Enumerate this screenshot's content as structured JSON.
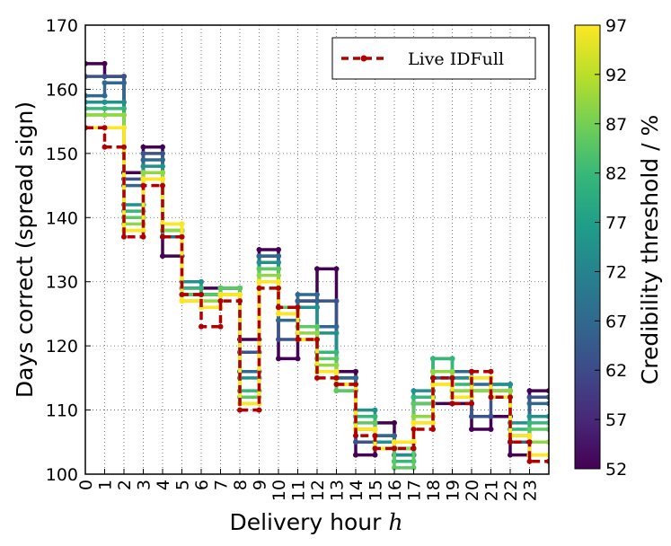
{
  "chart_data": {
    "type": "line",
    "subtype": "step",
    "xlabel": "Delivery hour",
    "xlabel_var": "h",
    "ylabel": "Days correct (spread sign)",
    "ylim": [
      100,
      170
    ],
    "xlim": [
      0,
      24
    ],
    "yticks": [
      100,
      110,
      120,
      130,
      140,
      150,
      160,
      170
    ],
    "xticks": [
      "0",
      "1",
      "2",
      "3",
      "4",
      "5",
      "6",
      "7",
      "8",
      "9",
      "10",
      "11",
      "12",
      "13",
      "14",
      "15",
      "16",
      "17",
      "18",
      "19",
      "20",
      "21",
      "22",
      "23"
    ],
    "grid": true,
    "legend": {
      "position": "top-right",
      "entries": [
        "Live IDFull"
      ]
    },
    "colorbar": {
      "label": "Credibility threshold / %",
      "ticks": [
        "97",
        "92",
        "87",
        "82",
        "77",
        "72",
        "67",
        "62",
        "57",
        "52"
      ],
      "min": 52,
      "max": 97
    },
    "series": [
      {
        "name": "threshold 52",
        "color": "#440154",
        "values": [
          164,
          162,
          147,
          151,
          134,
          129,
          129,
          129,
          121,
          135,
          118,
          127,
          132,
          116,
          103,
          108,
          103,
          111,
          111,
          111,
          107,
          109,
          103,
          113
        ]
      },
      {
        "name": "threshold 57",
        "color": "#3b528b",
        "values": [
          162,
          162,
          146,
          150,
          137,
          128,
          128,
          129,
          119,
          134,
          121,
          127,
          127,
          115,
          105,
          106,
          104,
          111,
          115,
          115,
          109,
          113,
          105,
          112
        ]
      },
      {
        "name": "threshold 62",
        "color": "#31688e",
        "values": [
          159,
          161,
          145,
          149,
          137,
          128,
          128,
          129,
          116,
          134,
          124,
          128,
          123,
          115,
          107,
          106,
          104,
          112,
          116,
          116,
          114,
          114,
          105,
          111
        ]
      },
      {
        "name": "threshold 67",
        "color": "#21918c",
        "values": [
          158,
          158,
          142,
          148,
          138,
          130,
          128,
          129,
          115,
          133,
          126,
          126,
          122,
          114,
          110,
          105,
          103,
          113,
          118,
          115,
          113,
          114,
          108,
          109
        ]
      },
      {
        "name": "threshold 72",
        "color": "#35b779",
        "values": [
          157,
          157,
          141,
          147,
          138,
          129,
          128,
          129,
          113,
          132,
          126,
          123,
          119,
          113,
          109,
          104,
          102,
          112,
          118,
          114,
          113,
          113,
          107,
          108
        ]
      },
      {
        "name": "threshold 77",
        "color": "#5ec962",
        "values": [
          156,
          156,
          140,
          147,
          138,
          128,
          128,
          129,
          112,
          132,
          126,
          123,
          118,
          113,
          108,
          104,
          101,
          111,
          116,
          113,
          113,
          113,
          106,
          107
        ]
      },
      {
        "name": "threshold 82",
        "color": "#90d743",
        "values": [
          156,
          156,
          139,
          147,
          138,
          127,
          127,
          128,
          111,
          131,
          125,
          122,
          117,
          114,
          107,
          104,
          104,
          109,
          116,
          113,
          113,
          113,
          106,
          105
        ]
      },
      {
        "name": "threshold 92",
        "color": "#c8e020",
        "values": [
          154,
          154,
          138,
          146,
          139,
          127,
          126,
          128,
          111,
          130,
          125,
          121,
          116,
          114,
          107,
          104,
          105,
          108,
          114,
          112,
          115,
          112,
          106,
          103
        ]
      },
      {
        "name": "threshold 97",
        "color": "#fde725",
        "values": [
          154,
          154,
          138,
          146,
          139,
          127,
          126,
          128,
          111,
          130,
          125,
          121,
          116,
          114,
          107,
          104,
          105,
          108,
          114,
          112,
          115,
          112,
          106,
          103
        ]
      },
      {
        "name": "Live IDFull",
        "color": "#b00000",
        "dashed": true,
        "values": [
          154,
          151,
          137,
          145,
          137,
          128,
          123,
          127,
          110,
          129,
          126,
          121,
          115,
          114,
          106,
          104,
          104,
          107,
          115,
          111,
          116,
          112,
          105,
          102
        ]
      }
    ]
  }
}
